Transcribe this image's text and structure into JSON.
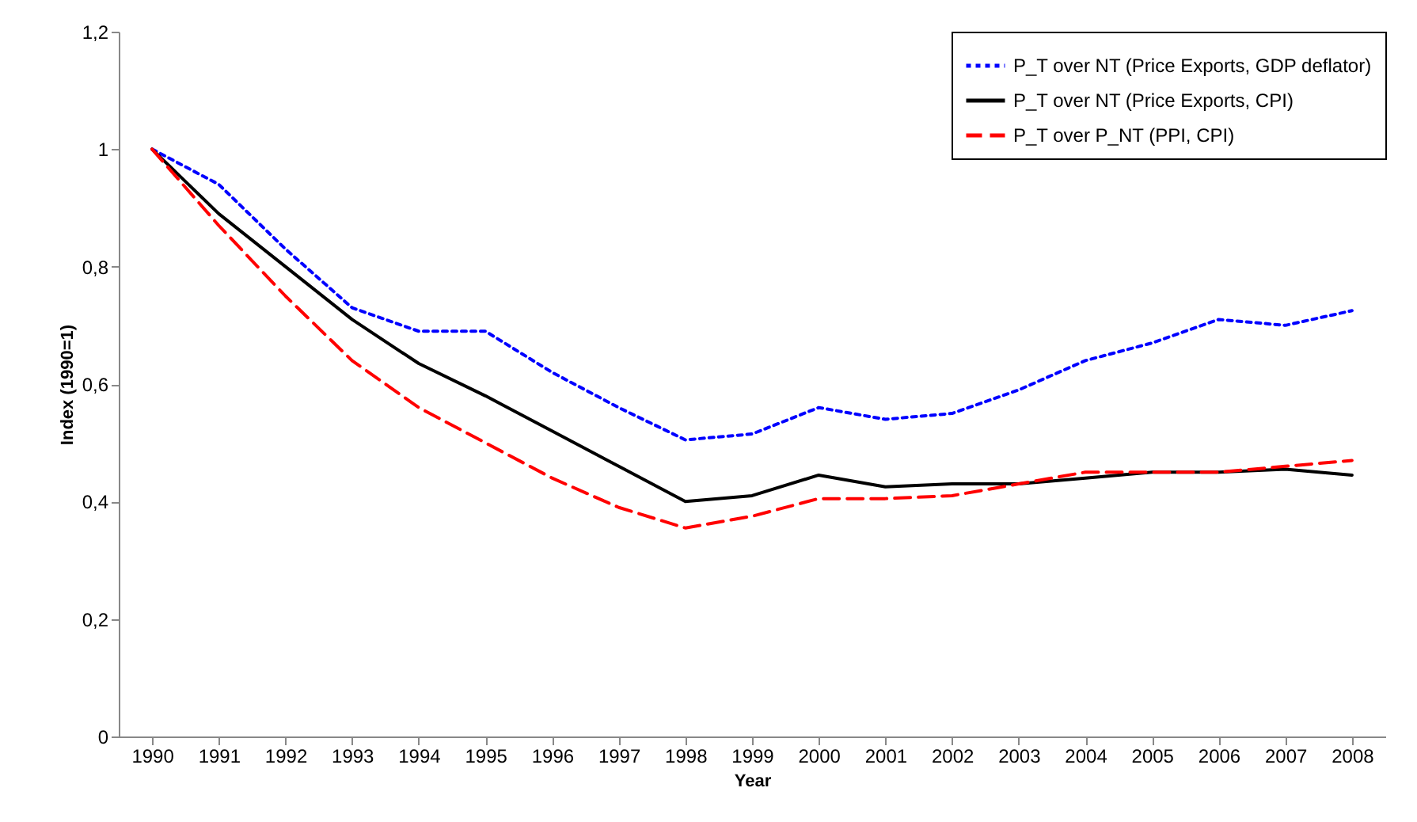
{
  "chart_data": {
    "type": "line",
    "xlabel": "Year",
    "ylabel": "Index (1990=1)",
    "categories": [
      "1990",
      "1991",
      "1992",
      "1993",
      "1994",
      "1995",
      "1996",
      "1997",
      "1998",
      "1999",
      "2000",
      "2001",
      "2002",
      "2003",
      "2004",
      "2005",
      "2006",
      "2007",
      "2008"
    ],
    "series": [
      {
        "name": "P_T over NT (Price Exports, GDP deflator)",
        "color": "#0000ff",
        "line_style": "dotted",
        "values": [
          1.0,
          0.94,
          0.83,
          0.73,
          0.69,
          0.69,
          0.62,
          0.56,
          0.505,
          0.515,
          0.56,
          0.54,
          0.55,
          0.59,
          0.64,
          0.67,
          0.71,
          0.7,
          0.725
        ]
      },
      {
        "name": "P_T over NT (Price Exports, CPI)",
        "color": "#000000",
        "line_style": "solid",
        "values": [
          1.0,
          0.89,
          0.8,
          0.71,
          0.635,
          0.58,
          0.52,
          0.46,
          0.4,
          0.41,
          0.445,
          0.425,
          0.43,
          0.43,
          0.44,
          0.45,
          0.45,
          0.455,
          0.445
        ]
      },
      {
        "name": "P_T over P_NT (PPI, CPI)",
        "color": "#ff0000",
        "line_style": "dashed",
        "values": [
          1.0,
          0.87,
          0.75,
          0.64,
          0.56,
          0.5,
          0.44,
          0.39,
          0.355,
          0.375,
          0.405,
          0.405,
          0.41,
          0.43,
          0.45,
          0.45,
          0.45,
          0.46,
          0.47
        ]
      }
    ],
    "ylim": [
      0,
      1.2
    ],
    "yticks": [
      0,
      {
        "value": 0.2,
        "label": "0,2"
      },
      {
        "value": 0.4,
        "label": "0,4"
      },
      {
        "value": 0.6,
        "label": "0,6"
      },
      {
        "value": 0.8,
        "label": "0,8"
      },
      1,
      {
        "value": 1.2,
        "label": "1,2"
      }
    ],
    "legend": "top right",
    "grid": false
  }
}
